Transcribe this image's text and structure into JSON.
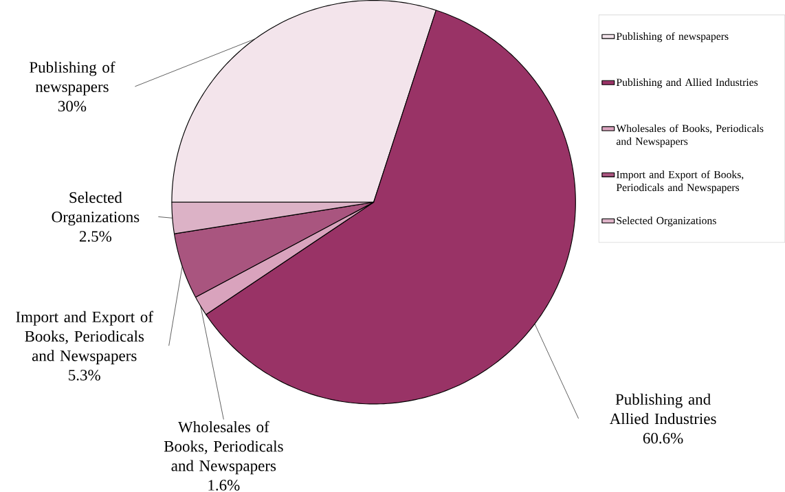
{
  "chart_data": {
    "type": "pie",
    "categories": [
      "Publishing of newspapers",
      "Publishing and Allied Industries",
      "Wholesales of Books, Periodicals and Newspapers",
      "Import and Export of Books, Periodicals and Newspapers",
      "Selected Organizations"
    ],
    "values": [
      30,
      60.6,
      1.6,
      5.3,
      2.5
    ],
    "colors": [
      "#f3e4eb",
      "#993366",
      "#d9a3bd",
      "#a9557f",
      "#dcb2c6"
    ],
    "value_labels": [
      "30%",
      "60.6%",
      "1.6%",
      "5.3%",
      "2.5%"
    ],
    "legend": "right"
  }
}
